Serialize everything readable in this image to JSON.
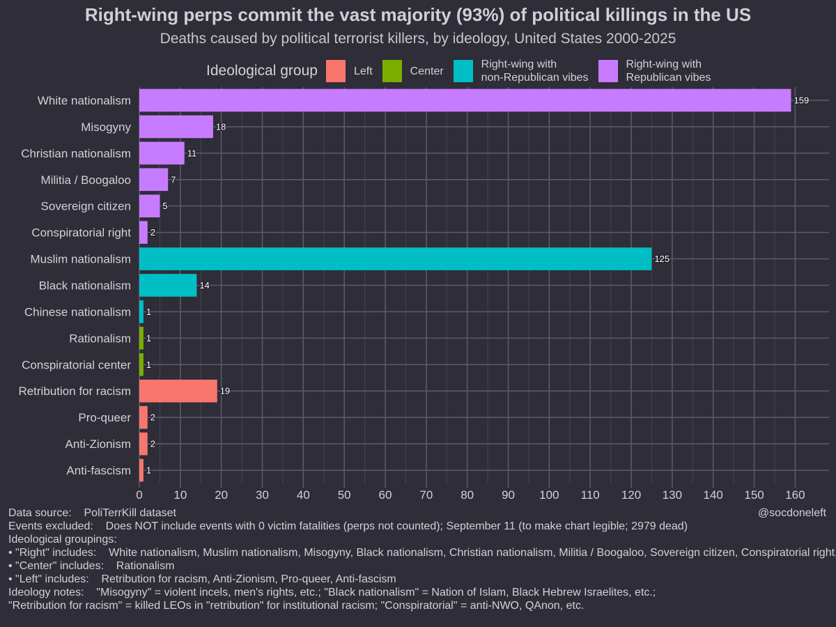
{
  "title": "Right-wing perps commit the vast majority (93%) of political killings in the US",
  "subtitle": "Deaths caused by political terrorist killers, by ideology, United States 2000-2025",
  "legend": {
    "title": "Ideological group",
    "items": [
      {
        "label": "Left",
        "color": "#f8766d"
      },
      {
        "label": "Center",
        "color": "#7cae00"
      },
      {
        "label": "Right-wing with\nnon-Republican vibes",
        "color": "#00bfc4"
      },
      {
        "label": "Right-wing with\nRepublican vibes",
        "color": "#c77cff"
      }
    ]
  },
  "chart_data": {
    "type": "bar",
    "orientation": "horizontal",
    "title": "Right-wing perps commit the vast majority (93%) of political killings in the US",
    "xlabel": "",
    "ylabel": "",
    "xlim": [
      0,
      160
    ],
    "xticks": [
      0,
      10,
      20,
      30,
      40,
      50,
      60,
      70,
      80,
      90,
      100,
      110,
      120,
      130,
      140,
      150,
      160
    ],
    "categories": [
      "White nationalism",
      "Misogyny",
      "Christian nationalism",
      "Militia / Boogaloo",
      "Sovereign citizen",
      "Conspiratorial right",
      "Muslim nationalism",
      "Black nationalism",
      "Chinese nationalism",
      "Rationalism",
      "Conspiratorial center",
      "Retribution for racism",
      "Pro-queer",
      "Anti-Zionism",
      "Anti-fascism"
    ],
    "values": [
      159,
      18,
      11,
      7,
      5,
      2,
      125,
      14,
      1,
      1,
      1,
      19,
      2,
      2,
      1
    ],
    "groups": [
      "Right-wing with Republican vibes",
      "Right-wing with Republican vibes",
      "Right-wing with Republican vibes",
      "Right-wing with Republican vibes",
      "Right-wing with Republican vibes",
      "Right-wing with Republican vibes",
      "Right-wing with non-Republican vibes",
      "Right-wing with non-Republican vibes",
      "Right-wing with non-Republican vibes",
      "Center",
      "Center",
      "Left",
      "Left",
      "Left",
      "Left"
    ],
    "colors": [
      "#c77cff",
      "#c77cff",
      "#c77cff",
      "#c77cff",
      "#c77cff",
      "#c77cff",
      "#00bfc4",
      "#00bfc4",
      "#00bfc4",
      "#7cae00",
      "#7cae00",
      "#f8766d",
      "#f8766d",
      "#f8766d",
      "#f8766d"
    ],
    "grid": true,
    "legend_position": "top"
  },
  "notes": {
    "data_source": "Data source:    PoliTerrKill dataset",
    "events_excluded": "Events excluded:    Does NOT include events with 0 victim fatalities (perps not counted); September 11 (to make chart legible; 2979 dead)",
    "groupings_title": "Ideological groupings:",
    "right": "• \"Right\" includes:    White nationalism, Muslim nationalism, Misogyny, Black nationalism, Christian nationalism, Militia / Boogaloo, Sovereign citizen, Conspiratorial right, Chinese nationalism",
    "center": "• \"Center\" includes:    Rationalism",
    "left": "• \"Left\" includes:    Retribution for racism, Anti-Zionism, Pro-queer, Anti-fascism",
    "ideology_notes_1": "Ideology notes:    \"Misogyny\" = violent incels, men's rights, etc.; \"Black nationalism\" = Nation of Islam, Black Hebrew Israelites, etc.;",
    "ideology_notes_2": "\"Retribution for racism\" = killed LEOs in \"retribution\" for institutional racism; \"Conspiratorial\" = anti-NWO, QAnon, etc."
  },
  "credit": "@socdoneleft"
}
